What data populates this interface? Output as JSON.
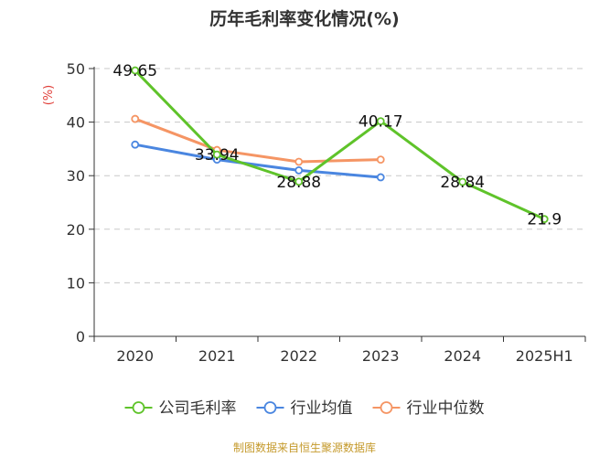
{
  "chart_data": {
    "type": "line",
    "title": "历年毛利率变化情况(%)",
    "ylabel": "(%)",
    "xlabel": "",
    "categories": [
      "2020",
      "2021",
      "2022",
      "2023",
      "2024",
      "2025H1"
    ],
    "ylim": [
      0,
      50
    ],
    "yticks": [
      0,
      10,
      20,
      30,
      40,
      50
    ],
    "grid": "horizontal-dashed",
    "legend_position": "bottom",
    "series": [
      {
        "name": "公司毛利率",
        "color": "#5fc32a",
        "values": [
          49.65,
          33.94,
          28.88,
          40.17,
          28.84,
          21.9
        ],
        "labels": [
          "49.65",
          "33.94",
          "28.88",
          "40.17",
          "28.84",
          "21.9"
        ]
      },
      {
        "name": "行业均值",
        "color": "#4a86e0",
        "values": [
          35.8,
          33.0,
          31.0,
          29.7,
          null,
          null
        ]
      },
      {
        "name": "行业中位数",
        "color": "#f59564",
        "values": [
          40.6,
          34.8,
          32.6,
          33.0,
          null,
          null
        ]
      }
    ],
    "source": "制图数据来自恒生聚源数据库"
  }
}
